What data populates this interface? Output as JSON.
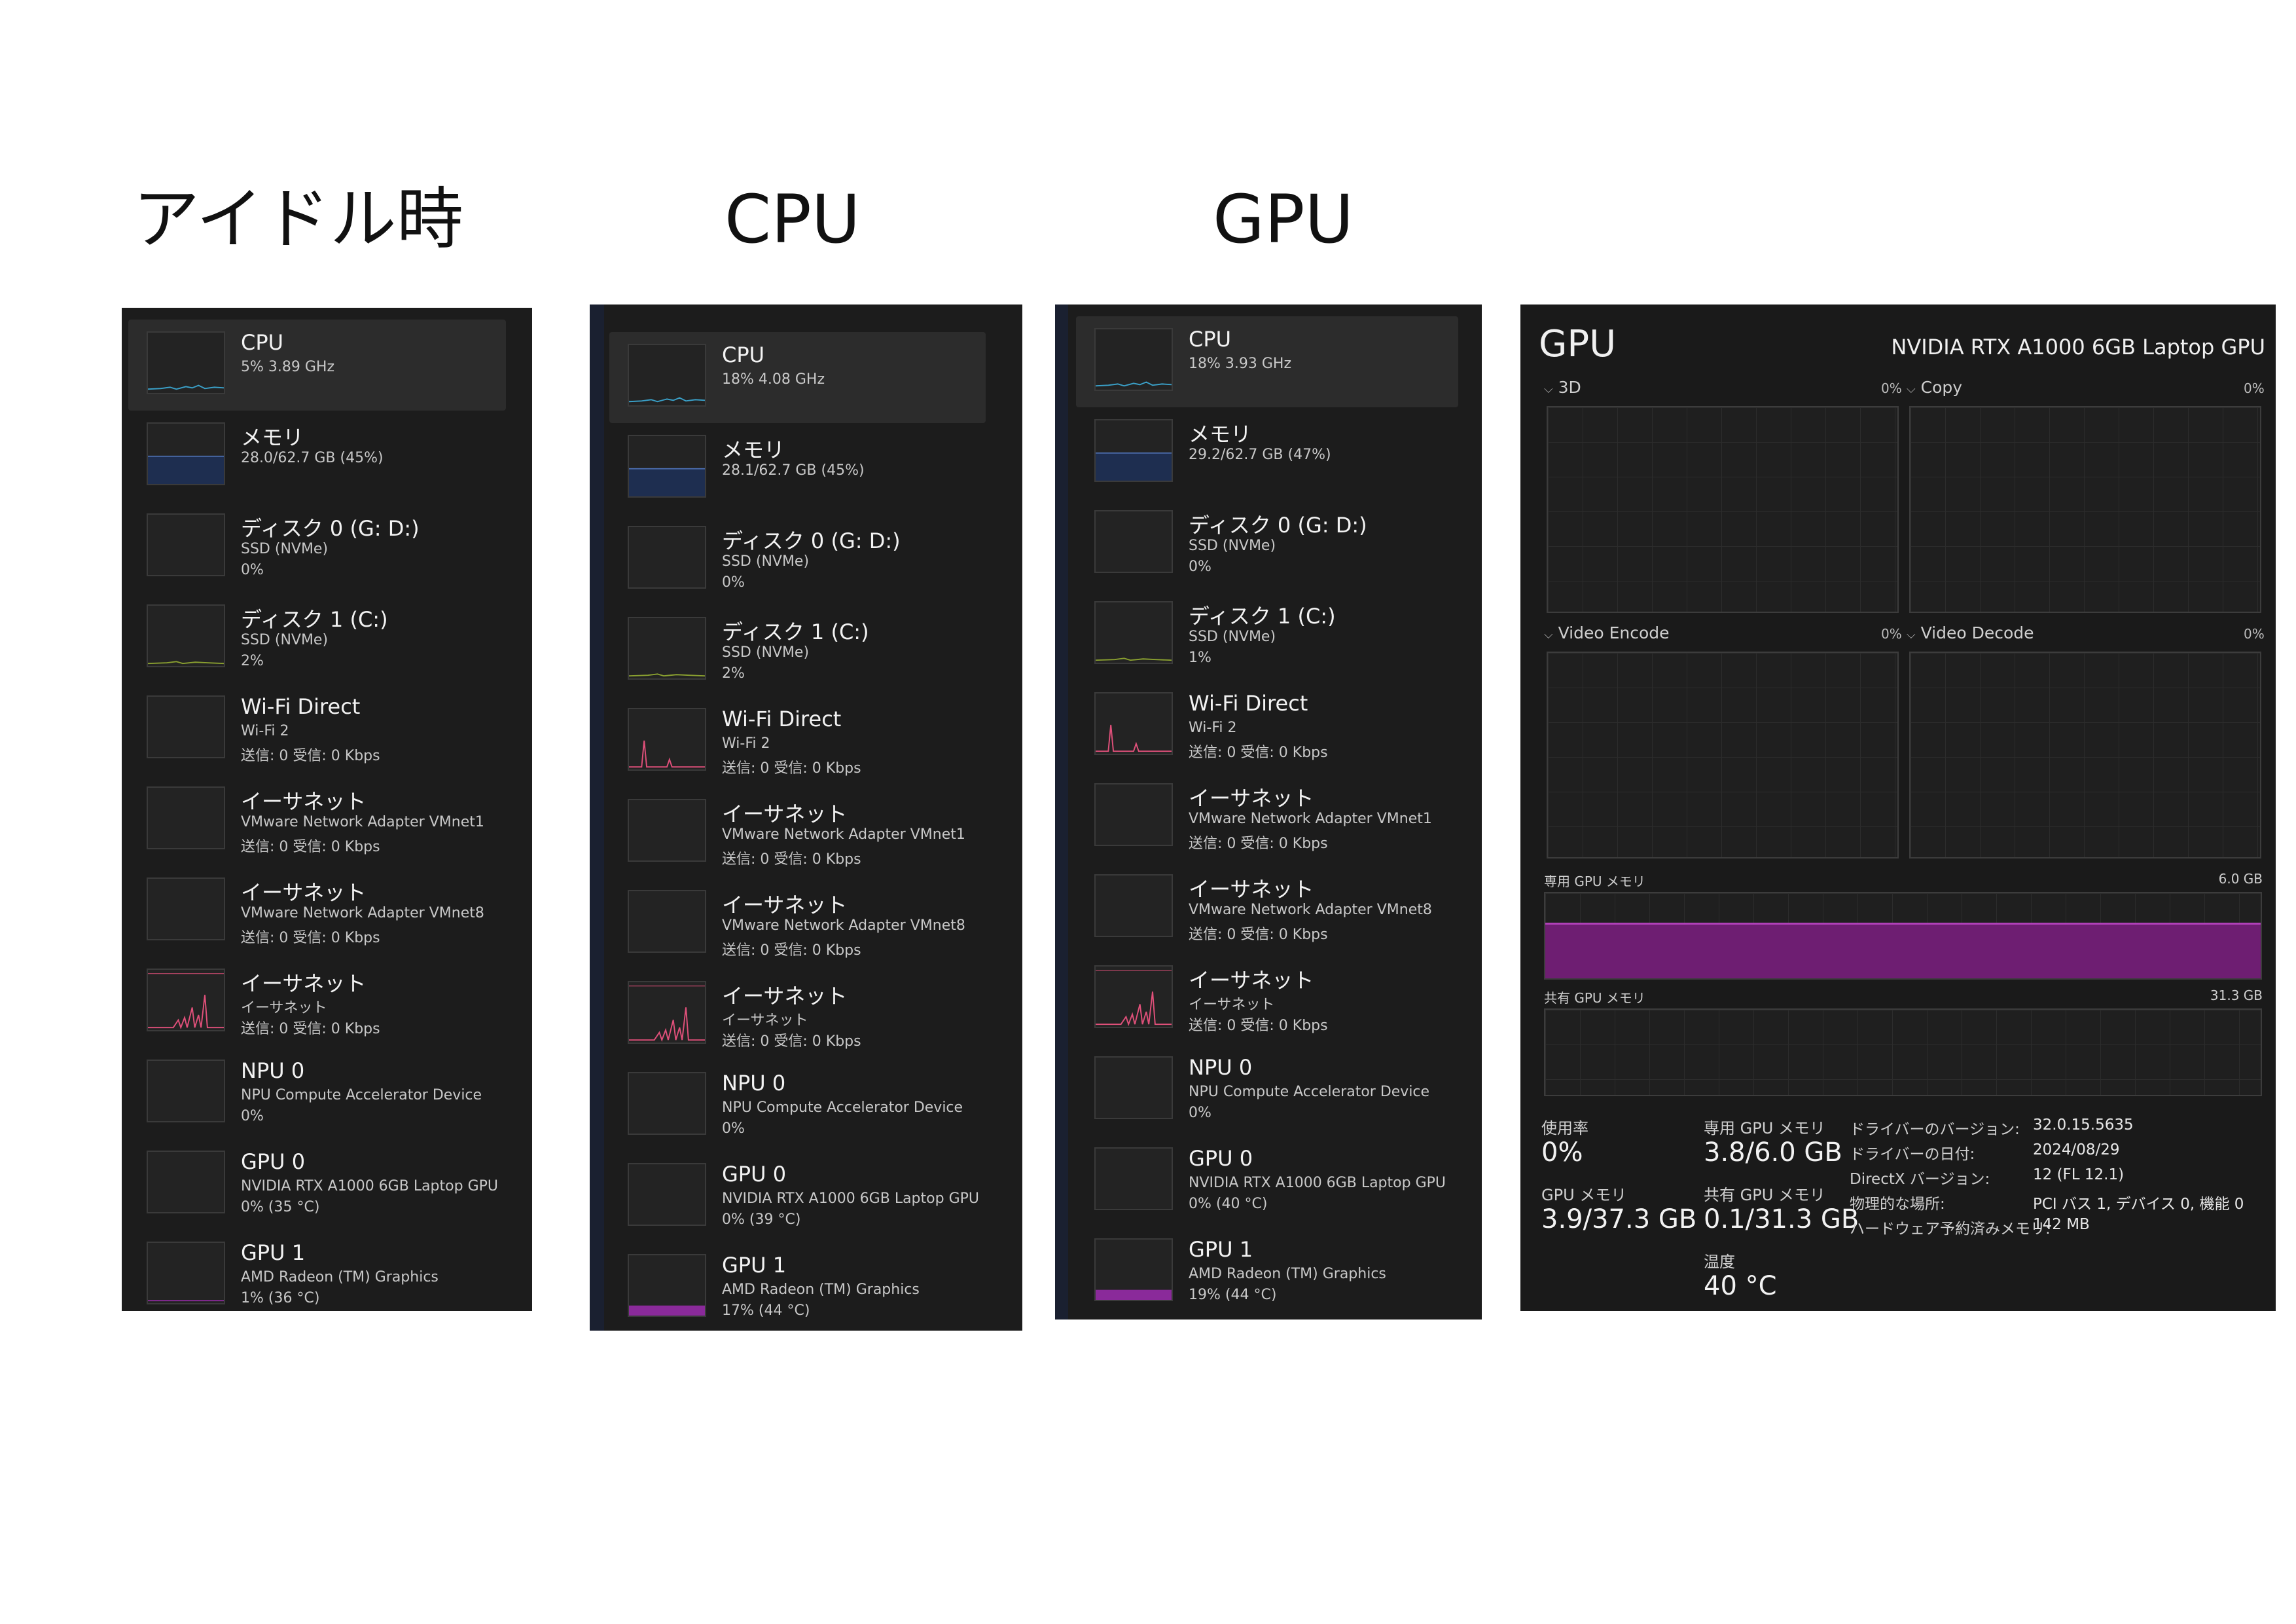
{
  "headings": {
    "idle": "アイドル時",
    "cpu": "CPU",
    "gpu": "GPU"
  },
  "panels": [
    {
      "items": [
        {
          "title": "CPU",
          "s1": "5%  3.89 GHz",
          "s2": "",
          "graph": "cpu"
        },
        {
          "title": "メモリ",
          "s1": "28.0/62.7 GB (45%)",
          "s2": "",
          "graph": "mem"
        },
        {
          "title": "ディスク 0 (G: D:)",
          "s1": "SSD (NVMe)",
          "s2": "0%",
          "graph": "none"
        },
        {
          "title": "ディスク 1 (C:)",
          "s1": "SSD (NVMe)",
          "s2": "2%",
          "graph": "disk"
        },
        {
          "title": "Wi-Fi Direct",
          "s1": "Wi-Fi 2",
          "s2": "送信: 0 受信: 0 Kbps",
          "graph": "none"
        },
        {
          "title": "イーサネット",
          "s1": "VMware Network Adapter VMnet1",
          "s2": "送信: 0 受信: 0 Kbps",
          "graph": "none"
        },
        {
          "title": "イーサネット",
          "s1": "VMware Network Adapter VMnet8",
          "s2": "送信: 0 受信: 0 Kbps",
          "graph": "none"
        },
        {
          "title": "イーサネット",
          "s1": "イーサネット",
          "s2": "送信: 0 受信: 0 Kbps",
          "graph": "eth"
        },
        {
          "title": "NPU 0",
          "s1": "NPU Compute Accelerator Device",
          "s2": "0%",
          "graph": "none"
        },
        {
          "title": "GPU 0",
          "s1": "NVIDIA RTX A1000 6GB Laptop GPU",
          "s2": "0%  (35 °C)",
          "graph": "none"
        },
        {
          "title": "GPU 1",
          "s1": "AMD Radeon (TM) Graphics",
          "s2": "1%  (36 °C)",
          "graph": "gpu-low"
        }
      ]
    },
    {
      "items": [
        {
          "title": "CPU",
          "s1": "18%  4.08 GHz",
          "s2": "",
          "graph": "cpu"
        },
        {
          "title": "メモリ",
          "s1": "28.1/62.7 GB (45%)",
          "s2": "",
          "graph": "mem"
        },
        {
          "title": "ディスク 0 (G: D:)",
          "s1": "SSD (NVMe)",
          "s2": "0%",
          "graph": "none"
        },
        {
          "title": "ディスク 1 (C:)",
          "s1": "SSD (NVMe)",
          "s2": "2%",
          "graph": "disk"
        },
        {
          "title": "Wi-Fi Direct",
          "s1": "Wi-Fi 2",
          "s2": "送信: 0 受信: 0 Kbps",
          "graph": "wifi"
        },
        {
          "title": "イーサネット",
          "s1": "VMware Network Adapter VMnet1",
          "s2": "送信: 0 受信: 0 Kbps",
          "graph": "none"
        },
        {
          "title": "イーサネット",
          "s1": "VMware Network Adapter VMnet8",
          "s2": "送信: 0 受信: 0 Kbps",
          "graph": "none"
        },
        {
          "title": "イーサネット",
          "s1": "イーサネット",
          "s2": "送信: 0 受信: 0 Kbps",
          "graph": "eth"
        },
        {
          "title": "NPU 0",
          "s1": "NPU Compute Accelerator Device",
          "s2": "0%",
          "graph": "none"
        },
        {
          "title": "GPU 0",
          "s1": "NVIDIA RTX A1000 6GB Laptop GPU",
          "s2": "0%  (39 °C)",
          "graph": "none"
        },
        {
          "title": "GPU 1",
          "s1": "AMD Radeon (TM) Graphics",
          "s2": "17%  (44 °C)",
          "graph": "gpu-mid"
        }
      ]
    },
    {
      "items": [
        {
          "title": "CPU",
          "s1": "18%  3.93 GHz",
          "s2": "",
          "graph": "cpu"
        },
        {
          "title": "メモリ",
          "s1": "29.2/62.7 GB (47%)",
          "s2": "",
          "graph": "mem"
        },
        {
          "title": "ディスク 0 (G: D:)",
          "s1": "SSD (NVMe)",
          "s2": "0%",
          "graph": "none"
        },
        {
          "title": "ディスク 1 (C:)",
          "s1": "SSD (NVMe)",
          "s2": "1%",
          "graph": "disk"
        },
        {
          "title": "Wi-Fi Direct",
          "s1": "Wi-Fi 2",
          "s2": "送信: 0 受信: 0 Kbps",
          "graph": "wifi"
        },
        {
          "title": "イーサネット",
          "s1": "VMware Network Adapter VMnet1",
          "s2": "送信: 0 受信: 0 Kbps",
          "graph": "none"
        },
        {
          "title": "イーサネット",
          "s1": "VMware Network Adapter VMnet8",
          "s2": "送信: 0 受信: 0 Kbps",
          "graph": "none"
        },
        {
          "title": "イーサネット",
          "s1": "イーサネット",
          "s2": "送信: 0 受信: 0 Kbps",
          "graph": "eth"
        },
        {
          "title": "NPU 0",
          "s1": "NPU Compute Accelerator Device",
          "s2": "0%",
          "graph": "none"
        },
        {
          "title": "GPU 0",
          "s1": "NVIDIA RTX A1000 6GB Laptop GPU",
          "s2": "0%  (40 °C)",
          "graph": "none"
        },
        {
          "title": "GPU 1",
          "s1": "AMD Radeon (TM) Graphics",
          "s2": "19%  (44 °C)",
          "graph": "gpu-mid"
        }
      ]
    }
  ],
  "gpu_detail": {
    "title": "GPU",
    "device_name": "NVIDIA RTX A1000 6GB Laptop GPU",
    "engines": [
      {
        "label": "3D",
        "pct": "0%"
      },
      {
        "label": "Copy",
        "pct": "0%"
      },
      {
        "label": "Video Encode",
        "pct": "0%"
      },
      {
        "label": "Video Decode",
        "pct": "0%"
      }
    ],
    "dedicated_mem_label": "専用 GPU メモリ",
    "dedicated_mem_max": "6.0 GB",
    "dedicated_mem_fraction": 0.63,
    "shared_mem_label": "共有 GPU メモリ",
    "shared_mem_max": "31.3 GB",
    "stats": {
      "usage_label": "使用率",
      "usage_value": "0%",
      "dedicated_label": "専用 GPU メモリ",
      "dedicated_value": "3.8/6.0 GB",
      "gpumem_label": "GPU メモリ",
      "gpumem_value": "3.9/37.3 GB",
      "shared_label": "共有 GPU メモリ",
      "shared_value": "0.1/31.3 GB",
      "temp_label": "温度",
      "temp_value": "40 °C"
    },
    "properties": [
      {
        "k": "ドライバーのバージョン:",
        "v": "32.0.15.5635"
      },
      {
        "k": "ドライバーの日付:",
        "v": "2024/08/29"
      },
      {
        "k": "DirectX バージョン:",
        "v": "12 (FL 12.1)"
      },
      {
        "k": "物理的な場所:",
        "v": "PCI バス 1, デバイス 0, 機能 0"
      },
      {
        "k": "ハードウェア予約済みメモリ:",
        "v": "142 MB"
      }
    ]
  },
  "colors": {
    "cpu_line": "#3aa0c8",
    "mem_fill": "#1e2e50",
    "disk_line": "#8aa030",
    "net_line": "#e0507a",
    "gpu_fill": "#8a2a9a",
    "gpu_mem_fill": "#6e1e72"
  }
}
